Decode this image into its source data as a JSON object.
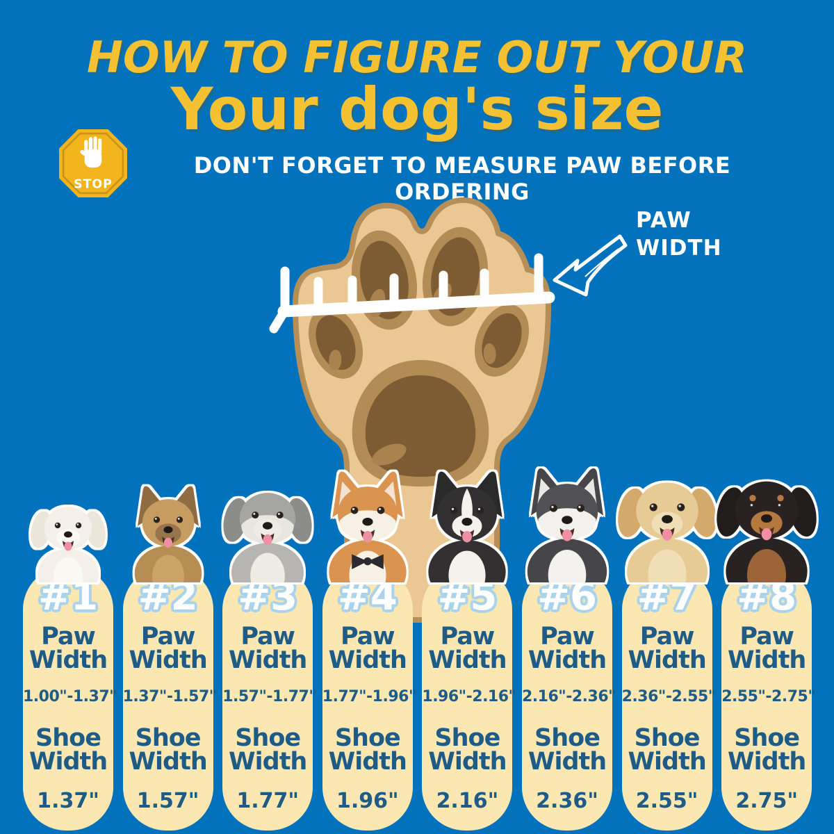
{
  "header": {
    "title_line1": "HOW TO FIGURE OUT YOUR",
    "title_line2": "Your dog's size",
    "warning": "DON'T FORGET TO MEASURE PAW BEFORE ORDERING",
    "stop_label": "STOP"
  },
  "paw_diagram": {
    "label_line1": "PAW",
    "label_line2": "WIDTH"
  },
  "labels": {
    "paw_line1": "Paw",
    "paw_line2": "Width",
    "shoe_line1": "Shoe",
    "shoe_line2": "Width"
  },
  "colors": {
    "background": "#0272BC",
    "title_yellow": "#F4C132",
    "stop_yellow": "#F2B51D",
    "card_cream": "#FAE7B2",
    "card_text_blue": "#1E5C87",
    "number_outline_blue": "#A9D3EC",
    "paw_base": "#EBC893",
    "paw_pad_ring": "#B28B55",
    "paw_pad_dark": "#7D5B33"
  },
  "sizes": [
    {
      "number": "#1",
      "breed": "Bichon Frise",
      "paw_width": "1.00\"-1.37\"",
      "shoe_width": "1.37\"",
      "dog": {
        "ear": "floppy",
        "earC": "#EDE7DB",
        "head": "#F4F0E9",
        "muzzle": "#FBF9F4",
        "body": "#F4F0E9",
        "chest": "#FBF9F4"
      }
    },
    {
      "number": "#2",
      "breed": "Yorkshire Terrier",
      "paw_width": "1.37\"-1.57\"",
      "shoe_width": "1.57\"",
      "dog": {
        "ear": "pointy",
        "earC": "#8F6C41",
        "head": "#C79C60",
        "muzzle": "#97744C",
        "body": "#B68D52",
        "chest": "#CBA468"
      }
    },
    {
      "number": "#3",
      "breed": "Bearded Collie",
      "paw_width": "1.57\"-1.77\"",
      "shoe_width": "1.77\"",
      "dog": {
        "ear": "floppy",
        "earC": "#8C8C8A",
        "head": "#A5A5A2",
        "mask": "#E9E6E0",
        "muzzle": "#EFECE6",
        "body": "#B6B5B1",
        "chest": "#EFECE6"
      }
    },
    {
      "number": "#4",
      "breed": "Shiba Inu",
      "paw_width": "1.77\"-1.96\"",
      "shoe_width": "1.96\"",
      "dog": {
        "ear": "pointy",
        "earC": "#DB9350",
        "earIn": "#F3E3D2",
        "head": "#DB9350",
        "mask": "#F7F0E5",
        "muzzle": "#F7F0E5",
        "body": "#DB9350",
        "chest": "#F7F0E5",
        "bowtie": "#2A2A30"
      }
    },
    {
      "number": "#5",
      "breed": "Border Collie",
      "paw_width": "1.96\"-2.16\"",
      "shoe_width": "2.16\"",
      "dog": {
        "ear": "pointy",
        "earC": "#2A2A2A",
        "head": "#323030",
        "blaze": "#F5F2ED",
        "muzzle": "#F5F2ED",
        "body": "#323030",
        "chest": "#F5F2ED"
      }
    },
    {
      "number": "#6",
      "breed": "Husky",
      "paw_width": "2.16\"-2.36\"",
      "shoe_width": "2.36\"",
      "dog": {
        "ear": "pointy",
        "earC": "#46464A",
        "earIn": "#EAE8E5",
        "head": "#515155",
        "mask": "#F3F1EE",
        "muzzle": "#F3F1EE",
        "body": "#46464A",
        "chest": "#F3F1EE"
      }
    },
    {
      "number": "#7",
      "breed": "Golden Retriever",
      "paw_width": "2.36\"-2.55\"",
      "shoe_width": "2.55\"",
      "dog": {
        "ear": "floppy",
        "earC": "#D3AA6C",
        "head": "#E7CB94",
        "muzzle": "#F0DEB7",
        "body": "#E7CB94",
        "chest": "#F0DEB7"
      }
    },
    {
      "number": "#8",
      "breed": "Rottweiler",
      "paw_width": "2.55\"-2.75\"",
      "shoe_width": "2.75\"",
      "dog": {
        "ear": "floppy",
        "earC": "#211D1C",
        "head": "#282322",
        "muzzle": "#B57940",
        "brows": "#B57940",
        "body": "#282322",
        "chest": "#9C6537"
      }
    }
  ],
  "chart_data": {
    "type": "table",
    "title": "How to figure out your dog's size",
    "columns": [
      "Size",
      "Paw Width",
      "Shoe Width"
    ],
    "rows": [
      [
        "#1",
        "1.00\"-1.37\"",
        "1.37\""
      ],
      [
        "#2",
        "1.37\"-1.57\"",
        "1.57\""
      ],
      [
        "#3",
        "1.57\"-1.77\"",
        "1.77\""
      ],
      [
        "#4",
        "1.77\"-1.96\"",
        "1.96\""
      ],
      [
        "#5",
        "1.96\"-2.16\"",
        "2.16\""
      ],
      [
        "#6",
        "2.16\"-2.36\"",
        "2.36\""
      ],
      [
        "#7",
        "2.36\"-2.55\"",
        "2.55\""
      ],
      [
        "#8",
        "2.55\"-2.75\"",
        "2.75\""
      ]
    ]
  }
}
